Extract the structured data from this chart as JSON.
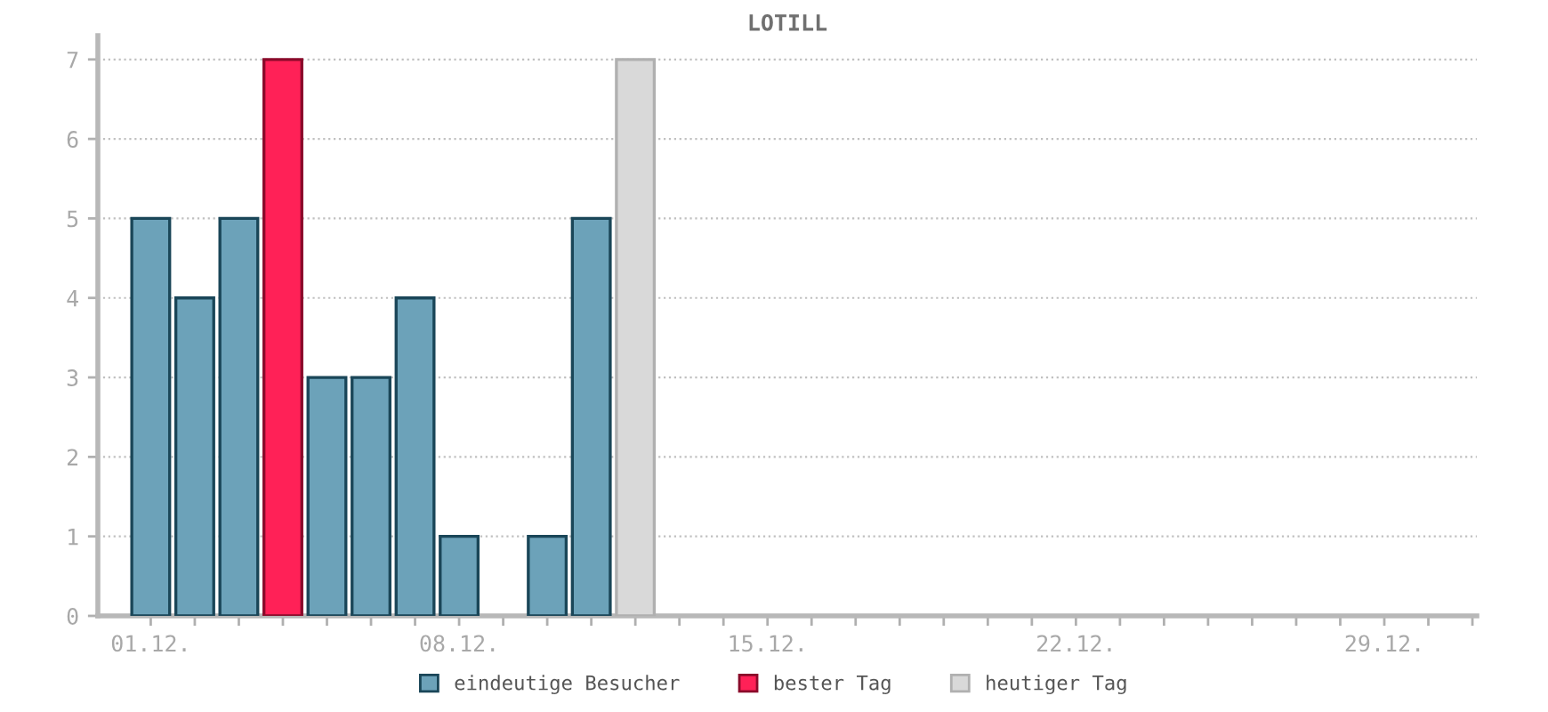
{
  "chart_data": {
    "type": "bar",
    "title": "LOTILL",
    "categories": [
      "01.12.",
      null,
      null,
      null,
      null,
      null,
      null,
      "08.12.",
      null,
      null,
      null,
      null,
      null,
      null,
      "15.12.",
      null,
      null,
      null,
      null,
      null,
      null,
      "22.12.",
      null,
      null,
      null,
      null,
      null,
      null,
      "29.12.",
      null,
      null
    ],
    "series": [
      {
        "name": "eindeutige Besucher",
        "color": "#6ca2b9",
        "values": [
          5,
          4,
          5,
          null,
          3,
          3,
          4,
          1,
          null,
          1,
          5,
          null,
          null,
          null,
          null,
          null,
          null,
          null,
          null,
          null,
          null,
          null,
          null,
          null,
          null,
          null,
          null,
          null,
          null,
          null,
          null
        ]
      },
      {
        "name": "bester Tag",
        "color": "#ff2157",
        "values": [
          null,
          null,
          null,
          7,
          null,
          null,
          null,
          null,
          null,
          null,
          null,
          null,
          null,
          null,
          null,
          null,
          null,
          null,
          null,
          null,
          null,
          null,
          null,
          null,
          null,
          null,
          null,
          null,
          null,
          null,
          null
        ]
      },
      {
        "name": "heutiger Tag",
        "color": "#d9d9d9",
        "values": [
          null,
          null,
          null,
          null,
          null,
          null,
          null,
          null,
          null,
          null,
          null,
          7,
          null,
          null,
          null,
          null,
          null,
          null,
          null,
          null,
          null,
          null,
          null,
          null,
          null,
          null,
          null,
          null,
          null,
          null,
          null
        ]
      }
    ],
    "ylim": [
      0,
      7.3
    ],
    "yticks": [
      0,
      1,
      2,
      3,
      4,
      5,
      6,
      7
    ],
    "grid": "y",
    "legend": "bottom"
  }
}
